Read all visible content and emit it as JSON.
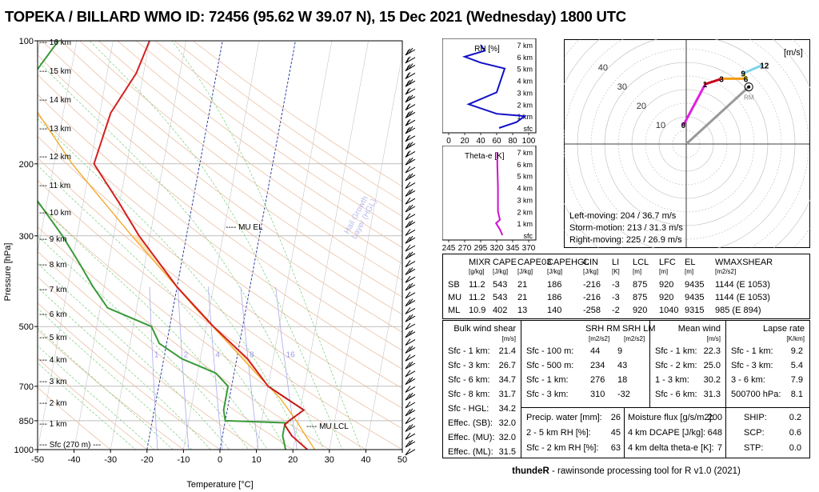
{
  "title": "TOPEKA / BILLARD WMO ID: 72456 (95.62 W 39.07 N), 15 Dec 2021 (Wednesday) 1800 UTC",
  "colors": {
    "temperature": "#d42020",
    "dewpoint": "#3a9a3a",
    "parcel": "#f5a623",
    "hodo_0_1": "#c8001c",
    "hodo_1_3": "#e020e0",
    "hodo_3_6": "#f39c12",
    "hodo_6_9": "#f1e40f",
    "hodo_9_12": "#7fd3e8",
    "rh": "#1010c8",
    "thetae": "#d010d0"
  },
  "chart_data": [
    {
      "type": "line",
      "name": "skew-t",
      "xlabel": "Temperature [°C]",
      "ylabel": "Pressure [hPa]",
      "x_ticks": [
        "-50",
        "-40",
        "-30",
        "-20",
        "-10",
        "0",
        "10",
        "20",
        "30",
        "40",
        "50"
      ],
      "y_ticks": [
        "100",
        "200",
        "300",
        "500",
        "700",
        "850",
        "1000"
      ],
      "height_labels": [
        "16 km",
        "15 km",
        "14 km",
        "13 km",
        "12 km",
        "11 km",
        "10 km",
        "9 km",
        "8 km",
        "7 km",
        "6 km",
        "5 km",
        "4 km",
        "3 km",
        "2 km",
        "1 km",
        "Sfc (270 m)"
      ],
      "mixing_ratio_labels": [
        "1",
        "2",
        "4",
        "8",
        "16"
      ],
      "annotations": {
        "mu_el": "MU EL",
        "mu_lcl": "MU LCL",
        "hail": "Hail Growth\nLayer (HGL)"
      },
      "temperature": [
        [
          1000,
          24
        ],
        [
          925,
          19
        ],
        [
          870,
          16.5
        ],
        [
          850,
          17.5
        ],
        [
          800,
          21
        ],
        [
          700,
          10
        ],
        [
          600,
          3
        ],
        [
          500,
          -8
        ],
        [
          400,
          -20
        ],
        [
          300,
          -33
        ],
        [
          250,
          -40
        ],
        [
          200,
          -49
        ],
        [
          150,
          -47
        ],
        [
          120,
          -42
        ],
        [
          100,
          -40
        ]
      ],
      "dewpoint": [
        [
          1000,
          18
        ],
        [
          925,
          16.5
        ],
        [
          860,
          16.5
        ],
        [
          850,
          0
        ],
        [
          800,
          -1
        ],
        [
          700,
          -1
        ],
        [
          650,
          -5
        ],
        [
          600,
          -15
        ],
        [
          550,
          -22
        ],
        [
          500,
          -25
        ],
        [
          450,
          -38
        ],
        [
          400,
          -43
        ],
        [
          350,
          -48
        ],
        [
          300,
          -54
        ],
        [
          250,
          -62
        ],
        [
          200,
          -72
        ],
        [
          190,
          -78
        ],
        [
          160,
          -76
        ],
        [
          130,
          -72
        ],
        [
          100,
          -65
        ]
      ],
      "parcel": [
        [
          1000,
          26
        ],
        [
          930,
          23
        ],
        [
          850,
          19.5
        ],
        [
          750,
          14
        ],
        [
          650,
          6
        ],
        [
          550,
          -3
        ],
        [
          450,
          -14
        ],
        [
          350,
          -27
        ],
        [
          300,
          -35
        ],
        [
          250,
          -44
        ],
        [
          200,
          -55
        ],
        [
          150,
          -67
        ],
        [
          100,
          -80
        ]
      ]
    },
    {
      "type": "line",
      "name": "rh-profile",
      "title": "RH [%]",
      "x_ticks": [
        "0",
        "20",
        "40",
        "60",
        "80",
        "100"
      ],
      "y_ticks": [
        "sfc",
        "1 km",
        "2 km",
        "3 km",
        "4 km",
        "5 km",
        "6 km",
        "7 km"
      ],
      "values_km_pct": [
        [
          0,
          63
        ],
        [
          0.5,
          85
        ],
        [
          1,
          95
        ],
        [
          1.2,
          60
        ],
        [
          2,
          25
        ],
        [
          3,
          60
        ],
        [
          4,
          65
        ],
        [
          5,
          70
        ],
        [
          5.5,
          40
        ],
        [
          6,
          20
        ],
        [
          6.5,
          45
        ],
        [
          7,
          40
        ]
      ]
    },
    {
      "type": "line",
      "name": "theta-e-profile",
      "title": "Theta-e [K]",
      "x_ticks": [
        "245",
        "270",
        "295",
        "320",
        "345",
        "370"
      ],
      "y_ticks": [
        "sfc",
        "1 km",
        "2 km",
        "3 km",
        "4 km",
        "5 km",
        "6 km",
        "7 km"
      ],
      "values_km_k": [
        [
          0,
          329
        ],
        [
          0.5,
          325
        ],
        [
          1,
          319
        ],
        [
          1.3,
          325
        ],
        [
          2,
          322
        ],
        [
          4,
          322
        ],
        [
          6,
          321
        ],
        [
          7,
          321
        ]
      ]
    },
    {
      "type": "line",
      "name": "hodograph",
      "axis_unit": "[m/s]",
      "ring_labels": [
        "10",
        "20",
        "30",
        "40"
      ],
      "point_labels": [
        "0",
        "1",
        "3",
        "6",
        "9",
        "12"
      ],
      "rm_label": "RM",
      "hodo_uv": {
        "0": [
          -1,
          7
        ],
        "1": [
          7,
          22
        ],
        "3": [
          13,
          24
        ],
        "6": [
          22,
          24
        ],
        "9": [
          21,
          26
        ],
        "12": [
          28,
          29
        ]
      },
      "motions": {
        "left_moving": "Left-moving: 204 / 36.7 m/s",
        "storm_motion": "Storm-motion: 213 / 31.3 m/s",
        "right_moving": "Right-moving: 225 / 26.9 m/s"
      }
    }
  ],
  "params": {
    "headers": [
      "MIXR",
      "CAPE",
      "CAPE03",
      "CAPEHGL",
      "CIN",
      "LI",
      "LCL",
      "LFC",
      "EL",
      "WMAXSHEAR"
    ],
    "units": [
      "[g/kg]",
      "[J/kg]",
      "[J/kg]",
      "[J/kg]",
      "[J/kg]",
      "[K]",
      "[m]",
      "[m]",
      "[m]",
      "[m2/s2]"
    ],
    "rows": [
      {
        "label": "SB",
        "values": [
          "11.2",
          "543",
          "21",
          "186",
          "-216",
          "-3",
          "875",
          "920",
          "9435",
          "1144  (E 1053)"
        ]
      },
      {
        "label": "MU",
        "values": [
          "11.2",
          "543",
          "21",
          "186",
          "-216",
          "-3",
          "875",
          "920",
          "9435",
          "1144  (E 1053)"
        ]
      },
      {
        "label": "ML",
        "values": [
          "10.9",
          "402",
          "13",
          "140",
          "-258",
          "-2",
          "920",
          "1040",
          "9315",
          "985  (E 894)"
        ]
      }
    ]
  },
  "shear": {
    "title": "Bulk wind shear",
    "unit": "[m/s]",
    "rows": [
      [
        "Sfc - 1 km:",
        "21.4"
      ],
      [
        "Sfc - 3 km:",
        "26.7"
      ],
      [
        "Sfc - 6 km:",
        "34.7"
      ],
      [
        "Sfc - 8 km:",
        "31.7"
      ],
      [
        "Sfc - HGL:",
        "34.2"
      ],
      [
        "Effec. (SB):",
        "32.0"
      ],
      [
        "Effec. (MU):",
        "32.0"
      ],
      [
        "Effec. (ML):",
        "31.5"
      ]
    ]
  },
  "srh": {
    "header_rm": "SRH RM",
    "header_lm": "SRH LM",
    "unit_rm": "[m2/s2]",
    "unit_lm": "[m2/s2]",
    "rows": [
      [
        "Sfc - 100 m:",
        "44",
        "9"
      ],
      [
        "Sfc - 500 m:",
        "234",
        "43"
      ],
      [
        "Sfc - 1 km:",
        "276",
        "18"
      ],
      [
        "Sfc - 3 km:",
        "310",
        "-32"
      ]
    ]
  },
  "meanwind": {
    "title": "Mean wind",
    "unit": "[m/s]",
    "rows": [
      [
        "Sfc - 1 km:",
        "22.3"
      ],
      [
        "Sfc - 2 km:",
        "25.0"
      ],
      [
        "1 - 3 km:",
        "30.2"
      ],
      [
        "Sfc - 6 km:",
        "31.3"
      ]
    ]
  },
  "lapse": {
    "title": "Lapse rate",
    "unit": "[K/km]",
    "rows": [
      [
        "Sfc - 1 km:",
        "9.2"
      ],
      [
        "Sfc - 3 km:",
        "5.4"
      ],
      [
        "3 - 6 km:",
        "7.9"
      ],
      [
        "500700 hPa:",
        "8.1"
      ]
    ]
  },
  "moist": {
    "rows": [
      [
        "Precip. water [mm]:",
        "26"
      ],
      [
        "2 - 5 km RH [%]:",
        "45"
      ],
      [
        "Sfc - 2 km RH [%]:",
        "63"
      ]
    ]
  },
  "flux": {
    "rows": [
      [
        "Moisture flux [g/s/m2]:",
        "200"
      ],
      [
        "4 km DCAPE [J/kg]:",
        "648"
      ],
      [
        "4 km delta theta-e [K]:",
        "7"
      ]
    ]
  },
  "composite": {
    "rows": [
      [
        "SHIP:",
        "0.2"
      ],
      [
        "SCP:",
        "0.6"
      ],
      [
        "STP:",
        "0.0"
      ]
    ]
  },
  "footer": {
    "brand": "thundeR",
    "rest": " - rawinsonde processing tool for R v1.0 (2021)"
  }
}
